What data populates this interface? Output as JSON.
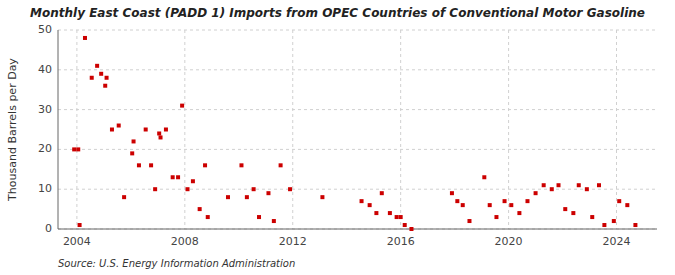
{
  "chart_data": {
    "type": "scatter",
    "title": "Monthly East Coast (PADD 1) Imports from OPEC Countries of Conventional Motor Gasoline",
    "ylabel": "Thousand Barrels per Day",
    "source": "Source: U.S. Energy Information Administration",
    "color": "#cc0000",
    "marker": "square",
    "grid": true,
    "xlim": [
      2003.3,
      2025.5
    ],
    "xticks": [
      2004,
      2008,
      2012,
      2016,
      2020,
      2024
    ],
    "ylim": [
      0,
      50
    ],
    "yticks": [
      0,
      10,
      20,
      30,
      40,
      50
    ],
    "x": [
      2003.9,
      2004.1,
      2004.3,
      2004.55,
      2004.75,
      2004.9,
      2005.1,
      2005.3,
      2005.55,
      2005.75,
      2006.1,
      2006.3,
      2006.55,
      2006.9,
      2007.1,
      2007.3,
      2007.55,
      2007.75,
      2007.9,
      2008.1,
      2008.3,
      2008.55,
      2008.85,
      2009.6,
      2010.1,
      2010.55,
      2010.75,
      2011.1,
      2011.3,
      2011.55,
      2011.9,
      2013.1,
      2014.55,
      2014.85,
      2015.1,
      2015.3,
      2015.6,
      2015.85,
      2016.0,
      2016.15,
      2016.4,
      2017.9,
      2018.1,
      2018.3,
      2018.55,
      2019.1,
      2019.55,
      2019.85,
      2020.1,
      2020.4,
      2020.7,
      2021.0,
      2021.3,
      2021.6,
      2021.85,
      2022.1,
      2022.4,
      2022.6,
      2022.9,
      2023.1,
      2023.35,
      2023.55,
      2023.9,
      2024.1,
      2024.4,
      2024.7,
      2004.05,
      2005.05,
      2006.05,
      2006.75,
      2007.05,
      2008.75,
      2010.3,
      2019.3
    ],
    "values": [
      20,
      1,
      48,
      38,
      41,
      39,
      38,
      25,
      26,
      8,
      22,
      16,
      25,
      10,
      23,
      25,
      13,
      13,
      31,
      10,
      12,
      5,
      3,
      8,
      16,
      10,
      3,
      9,
      2,
      16,
      10,
      8,
      7,
      6,
      4,
      9,
      4,
      3,
      3,
      1,
      0,
      9,
      7,
      6,
      2,
      13,
      3,
      7,
      6,
      4,
      7,
      9,
      11,
      10,
      11,
      5,
      4,
      11,
      10,
      3,
      11,
      1,
      2,
      7,
      6,
      1,
      20,
      36,
      19,
      16,
      24,
      16,
      8,
      6
    ]
  }
}
